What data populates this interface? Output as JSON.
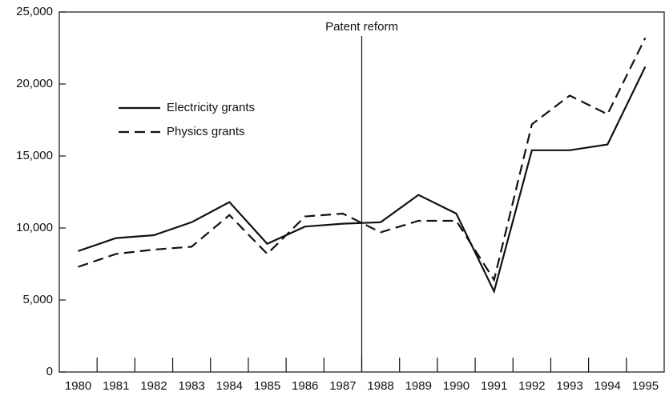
{
  "chart_data": {
    "type": "line",
    "categories": [
      "1980",
      "1981",
      "1982",
      "1983",
      "1984",
      "1985",
      "1986",
      "1987",
      "1988",
      "1989",
      "1990",
      "1991",
      "1992",
      "1993",
      "1994",
      "1995"
    ],
    "series": [
      {
        "name": "Electricity grants",
        "color": "#111111",
        "dash": "solid",
        "values": [
          8400,
          9300,
          9500,
          10400,
          11800,
          8900,
          10100,
          10300,
          10400,
          12300,
          11000,
          5600,
          15400,
          15400,
          15800,
          21200
        ]
      },
      {
        "name": "Physics grants",
        "color": "#111111",
        "dash": "dashed",
        "values": [
          7300,
          8200,
          8500,
          8700,
          10900,
          8200,
          10800,
          11000,
          9700,
          10500,
          10500,
          6400,
          17200,
          19200,
          17900,
          23200
        ]
      }
    ],
    "ylim": [
      0,
      25000
    ],
    "yticks": [
      0,
      {
        "value": 5000,
        "label": "5,000"
      },
      {
        "value": 10000,
        "label": "10,000"
      },
      {
        "value": 15000,
        "label": "15,000"
      },
      {
        "value": 20000,
        "label": "20,000"
      },
      {
        "value": 25000,
        "label": "25,000"
      }
    ],
    "annotation": {
      "text": "Patent reform",
      "after_category": "1987"
    },
    "legend": "upper left",
    "grid": false
  }
}
